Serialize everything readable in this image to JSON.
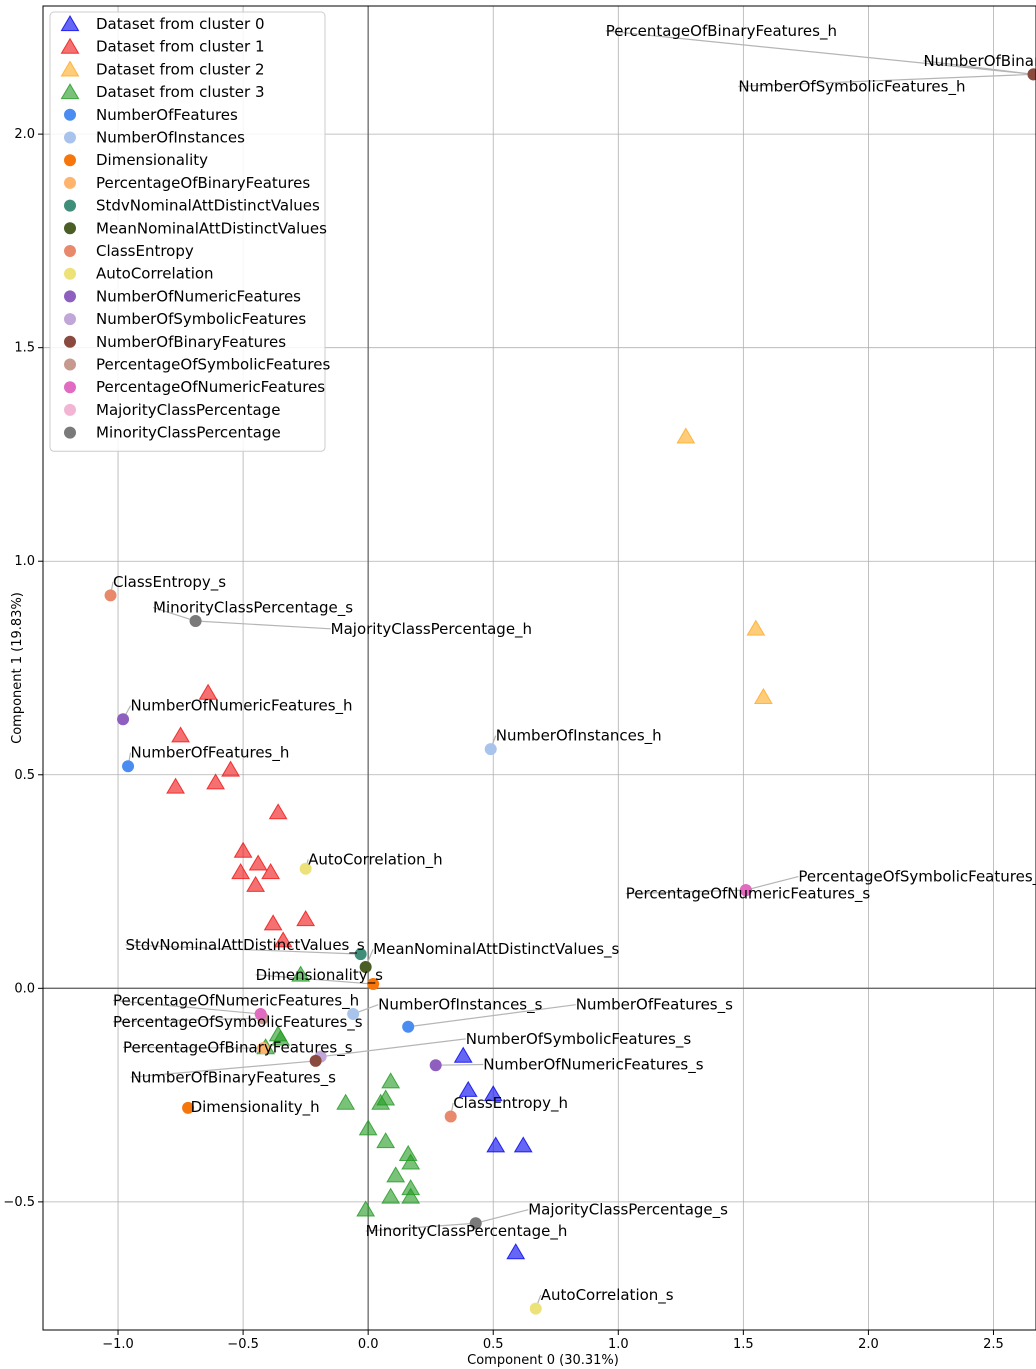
{
  "chart_data": {
    "type": "scatter",
    "title": "",
    "xlabel": "Component 0 (30.31%)",
    "ylabel": "Component 1 (19.83%)",
    "xlim": [
      -1.3,
      2.67
    ],
    "ylim": [
      -0.8,
      2.3
    ],
    "xticks": [
      {
        "v": -1.0,
        "label": "−1.0"
      },
      {
        "v": -0.5,
        "label": "−0.5"
      },
      {
        "v": 0.0,
        "label": "0.0"
      },
      {
        "v": 0.5,
        "label": "0.5"
      },
      {
        "v": 1.0,
        "label": "1.0"
      },
      {
        "v": 1.5,
        "label": "1.5"
      },
      {
        "v": 2.0,
        "label": "2.0"
      },
      {
        "v": 2.5,
        "label": "2.5"
      }
    ],
    "yticks": [
      {
        "v": -0.5,
        "label": "−0.5"
      },
      {
        "v": 0.0,
        "label": "0.0"
      },
      {
        "v": 0.5,
        "label": "0.5"
      },
      {
        "v": 1.0,
        "label": "1.0"
      },
      {
        "v": 1.5,
        "label": "1.5"
      },
      {
        "v": 2.0,
        "label": "2.0"
      }
    ],
    "grid": true,
    "origin_lines": true,
    "legend_position": "top-left",
    "clusters": [
      {
        "name": "Dataset from cluster 0",
        "color": "#0000ee",
        "points": [
          [
            0.38,
            -0.16
          ],
          [
            0.4,
            -0.24
          ],
          [
            0.5,
            -0.25
          ],
          [
            0.51,
            -0.37
          ],
          [
            0.62,
            -0.37
          ],
          [
            0.59,
            -0.62
          ]
        ]
      },
      {
        "name": "Dataset from cluster 1",
        "color": "#ee1111",
        "points": [
          [
            -0.64,
            0.69
          ],
          [
            -0.75,
            0.59
          ],
          [
            -0.55,
            0.51
          ],
          [
            -0.77,
            0.47
          ],
          [
            -0.61,
            0.48
          ],
          [
            -0.36,
            0.41
          ],
          [
            -0.5,
            0.32
          ],
          [
            -0.44,
            0.29
          ],
          [
            -0.39,
            0.27
          ],
          [
            -0.51,
            0.27
          ],
          [
            -0.45,
            0.24
          ],
          [
            -0.38,
            0.15
          ],
          [
            -0.25,
            0.16
          ],
          [
            -0.34,
            0.11
          ]
        ]
      },
      {
        "name": "Dataset from cluster 2",
        "color": "#ffaa22",
        "points": [
          [
            1.27,
            1.29
          ],
          [
            1.55,
            0.84
          ],
          [
            1.58,
            0.68
          ]
        ]
      },
      {
        "name": "Dataset from cluster 3",
        "color": "#229922",
        "points": [
          [
            -0.27,
            0.03
          ],
          [
            -0.36,
            -0.11
          ],
          [
            -0.35,
            -0.12
          ],
          [
            -0.41,
            -0.14
          ],
          [
            -0.09,
            -0.27
          ],
          [
            0.09,
            -0.22
          ],
          [
            0.07,
            -0.26
          ],
          [
            0.05,
            -0.27
          ],
          [
            0.0,
            -0.33
          ],
          [
            0.07,
            -0.36
          ],
          [
            0.16,
            -0.39
          ],
          [
            0.17,
            -0.41
          ],
          [
            0.11,
            -0.44
          ],
          [
            0.17,
            -0.47
          ],
          [
            0.09,
            -0.49
          ],
          [
            0.17,
            -0.49
          ],
          [
            -0.01,
            -0.52
          ]
        ]
      }
    ],
    "features": [
      {
        "name": "NumberOfFeatures",
        "color": "#4a8cf0"
      },
      {
        "name": "NumberOfInstances",
        "color": "#a8c4ec"
      },
      {
        "name": "Dimensionality",
        "color": "#f7760c"
      },
      {
        "name": "PercentageOfBinaryFeatures",
        "color": "#ffb46e"
      },
      {
        "name": "StdvNominalAttDistinctValues",
        "color": "#3f8e79"
      },
      {
        "name": "MeanNominalAttDistinctValues",
        "color": "#4a5e26"
      },
      {
        "name": "ClassEntropy",
        "color": "#e8896b"
      },
      {
        "name": "AutoCorrelation",
        "color": "#ede27a"
      },
      {
        "name": "NumberOfNumericFeatures",
        "color": "#8f5fc0"
      },
      {
        "name": "NumberOfSymbolicFeatures",
        "color": "#c0a7d8"
      },
      {
        "name": "NumberOfBinaryFeatures",
        "color": "#8b4a3e"
      },
      {
        "name": "PercentageOfSymbolicFeatures",
        "color": "#c79a90"
      },
      {
        "name": "PercentageOfNumericFeatures",
        "color": "#e06bc0"
      },
      {
        "name": "MajorityClassPercentage",
        "color": "#f2b6d4"
      },
      {
        "name": "MinorityClassPercentage",
        "color": "#7a7a7a"
      }
    ],
    "feature_points": [
      {
        "label": "NumberOfFeatures_h",
        "feature": "NumberOfFeatures",
        "x": -0.96,
        "y": 0.52,
        "tx": -0.95,
        "ty": 0.54
      },
      {
        "label": "NumberOfFeatures_s",
        "feature": "NumberOfFeatures",
        "x": 0.16,
        "y": -0.09,
        "tx": 0.83,
        "ty": -0.05
      },
      {
        "label": "NumberOfInstances_h",
        "feature": "NumberOfInstances",
        "x": 0.49,
        "y": 0.56,
        "tx": 0.51,
        "ty": 0.58
      },
      {
        "label": "NumberOfInstances_s",
        "feature": "NumberOfInstances",
        "x": -0.06,
        "y": -0.06,
        "tx": 0.04,
        "ty": -0.05
      },
      {
        "label": "Dimensionality_s",
        "feature": "Dimensionality",
        "x": 0.02,
        "y": 0.01,
        "tx": -0.45,
        "ty": 0.02
      },
      {
        "label": "Dimensionality_h",
        "feature": "Dimensionality",
        "x": -0.72,
        "y": -0.28,
        "tx": -0.71,
        "ty": -0.29
      },
      {
        "label": "PercentageOfBinaryFeatures_h",
        "feature": "PercentageOfBinaryFeatures",
        "x": 2.66,
        "y": 2.14,
        "tx": 0.95,
        "ty": 2.23
      },
      {
        "label": "PercentageOfBinaryFeatures_s",
        "feature": "PercentageOfBinaryFeatures",
        "x": -0.42,
        "y": -0.14,
        "tx": -0.98,
        "ty": -0.15
      },
      {
        "label": "StdvNominalAttDistinctValues_s",
        "feature": "StdvNominalAttDistinctValues",
        "x": -0.03,
        "y": 0.08,
        "tx": -0.97,
        "ty": 0.09
      },
      {
        "label": "MeanNominalAttDistinctValues_s",
        "feature": "MeanNominalAttDistinctValues",
        "x": -0.01,
        "y": 0.05,
        "tx": 0.02,
        "ty": 0.08
      },
      {
        "label": "ClassEntropy_s",
        "feature": "ClassEntropy",
        "x": -1.03,
        "y": 0.92,
        "tx": -1.02,
        "ty": 0.94
      },
      {
        "label": "ClassEntropy_h",
        "feature": "ClassEntropy",
        "x": 0.33,
        "y": -0.3,
        "tx": 0.34,
        "ty": -0.28
      },
      {
        "label": "AutoCorrelation_h",
        "feature": "AutoCorrelation",
        "x": -0.25,
        "y": 0.28,
        "tx": -0.24,
        "ty": 0.29
      },
      {
        "label": "AutoCorrelation_s",
        "feature": "AutoCorrelation",
        "x": 0.67,
        "y": -0.75,
        "tx": 0.69,
        "ty": -0.73
      },
      {
        "label": "NumberOfNumericFeatures_h",
        "feature": "NumberOfNumericFeatures",
        "x": -0.98,
        "y": 0.63,
        "tx": -0.95,
        "ty": 0.65
      },
      {
        "label": "NumberOfNumericFeatures_s",
        "feature": "NumberOfNumericFeatures",
        "x": 0.27,
        "y": -0.18,
        "tx": 0.46,
        "ty": -0.19
      },
      {
        "label": "NumberOfSymbolicFeatures_h",
        "feature": "NumberOfSymbolicFeatures",
        "x": 2.66,
        "y": 2.14,
        "tx": 1.48,
        "ty": 2.1
      },
      {
        "label": "NumberOfSymbolicFeatures_s",
        "feature": "NumberOfSymbolicFeatures",
        "x": -0.19,
        "y": -0.16,
        "tx": 0.39,
        "ty": -0.13
      },
      {
        "label": "NumberOfBinaryFeatures_h",
        "feature": "NumberOfBinaryFeatures",
        "x": 2.66,
        "y": 2.14,
        "tx": 2.22,
        "ty": 2.16
      },
      {
        "label": "NumberOfBinaryFeatures_s",
        "feature": "NumberOfBinaryFeatures",
        "x": -0.21,
        "y": -0.17,
        "tx": -0.95,
        "ty": -0.22
      },
      {
        "label": "PercentageOfSymbolicFeatures_h",
        "feature": "PercentageOfSymbolicFeatures",
        "x": 1.51,
        "y": 0.23,
        "tx": 1.72,
        "ty": 0.25
      },
      {
        "label": "PercentageOfSymbolicFeatures_s",
        "feature": "PercentageOfSymbolicFeatures",
        "x": -0.42,
        "y": -0.07,
        "tx": -1.02,
        "ty": -0.09
      },
      {
        "label": "PercentageOfNumericFeatures_h",
        "feature": "PercentageOfNumericFeatures",
        "x": -0.43,
        "y": -0.06,
        "tx": -1.02,
        "ty": -0.04
      },
      {
        "label": "PercentageOfNumericFeatures_s",
        "feature": "PercentageOfNumericFeatures",
        "x": 1.51,
        "y": 0.23,
        "tx": 1.03,
        "ty": 0.21
      },
      {
        "label": "MajorityClassPercentage_h",
        "feature": "MajorityClassPercentage",
        "x": -0.69,
        "y": 0.86,
        "tx": -0.15,
        "ty": 0.83
      },
      {
        "label": "MajorityClassPercentage_s",
        "feature": "MajorityClassPercentage",
        "x": 0.43,
        "y": -0.55,
        "tx": 0.64,
        "ty": -0.53
      },
      {
        "label": "MinorityClassPercentage_s",
        "feature": "MinorityClassPercentage",
        "x": -0.69,
        "y": 0.86,
        "tx": -0.86,
        "ty": 0.88
      },
      {
        "label": "MinorityClassPercentage_h",
        "feature": "MinorityClassPercentage",
        "x": 0.43,
        "y": -0.55,
        "tx": -0.01,
        "ty": -0.58
      }
    ]
  }
}
